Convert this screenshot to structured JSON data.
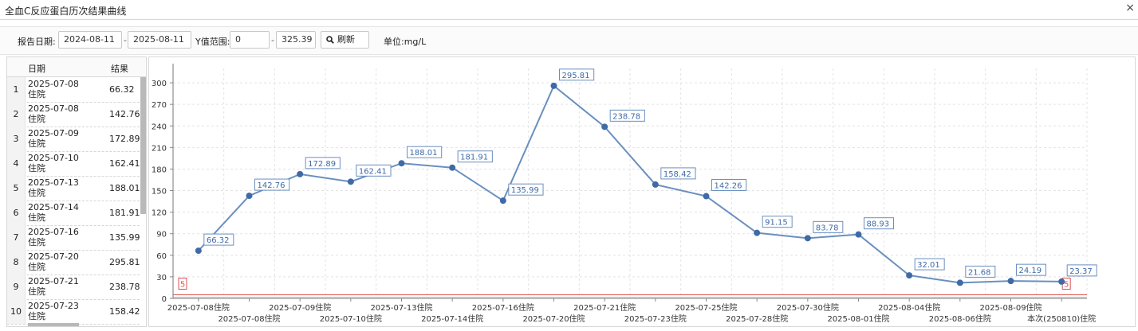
{
  "window": {
    "title": "全血C反应蛋白历次结果曲线",
    "close_glyph": "×"
  },
  "toolbar": {
    "report_date_label": "报告日期:",
    "date_from": "2024-08-11",
    "date_to": "2025-08-11",
    "y_range_label": "Y值范围:",
    "y_min": "0",
    "y_max": "325.39",
    "refresh_label": "刷新",
    "unit_label": "单位:mg/L",
    "dash": "-"
  },
  "table": {
    "headers": {
      "date": "日期",
      "result": "结果"
    },
    "rows": [
      {
        "no": "1",
        "date": "2025-07-08",
        "type": "住院",
        "value": "66.32"
      },
      {
        "no": "2",
        "date": "2025-07-08",
        "type": "住院",
        "value": "142.76"
      },
      {
        "no": "3",
        "date": "2025-07-09",
        "type": "住院",
        "value": "172.89"
      },
      {
        "no": "4",
        "date": "2025-07-10",
        "type": "住院",
        "value": "162.41"
      },
      {
        "no": "5",
        "date": "2025-07-13",
        "type": "住院",
        "value": "188.01"
      },
      {
        "no": "6",
        "date": "2025-07-14",
        "type": "住院",
        "value": "181.91"
      },
      {
        "no": "7",
        "date": "2025-07-16",
        "type": "住院",
        "value": "135.99"
      },
      {
        "no": "8",
        "date": "2025-07-20",
        "type": "住院",
        "value": "295.81"
      },
      {
        "no": "9",
        "date": "2025-07-21",
        "type": "住院",
        "value": "238.78"
      },
      {
        "no": "10",
        "date": "2025-07-23",
        "type": "住院",
        "value": "158.42"
      }
    ]
  },
  "chart_data": {
    "type": "line",
    "categories": [
      "2025-07-08住院",
      "2025-07-08住院",
      "2025-07-09住院",
      "2025-07-10住院",
      "2025-07-13住院",
      "2025-07-14住院",
      "2025-07-16住院",
      "2025-07-20住院",
      "2025-07-21住院",
      "2025-07-23住院",
      "2025-07-25住院",
      "2025-07-28住院",
      "2025-07-30住院",
      "2025-08-01住院",
      "2025-08-04住院",
      "2025-08-06住院",
      "2025-08-09住院",
      "本次(250810)住院"
    ],
    "values": [
      66.32,
      142.76,
      172.89,
      162.41,
      188.01,
      181.91,
      135.99,
      295.81,
      238.78,
      158.42,
      142.26,
      91.15,
      83.78,
      88.93,
      32.01,
      21.68,
      24.19,
      23.37
    ],
    "data_labels": [
      "66.32",
      "142.76",
      "172.89",
      "162.41",
      "188.01",
      "181.91",
      "135.99",
      "295.81",
      "238.78",
      "158.42",
      "142.26",
      "91.15",
      "83.78",
      "88.93",
      "32.01",
      "21.68",
      "24.19",
      "23.37"
    ],
    "reference_value": 5,
    "reference_label": "5",
    "ylim": [
      0,
      320
    ],
    "yticks": [
      0,
      30,
      60,
      90,
      120,
      150,
      180,
      210,
      240,
      270,
      300
    ],
    "grid": true,
    "line_color": "#6a8fbf",
    "reference_color": "#e05050"
  }
}
